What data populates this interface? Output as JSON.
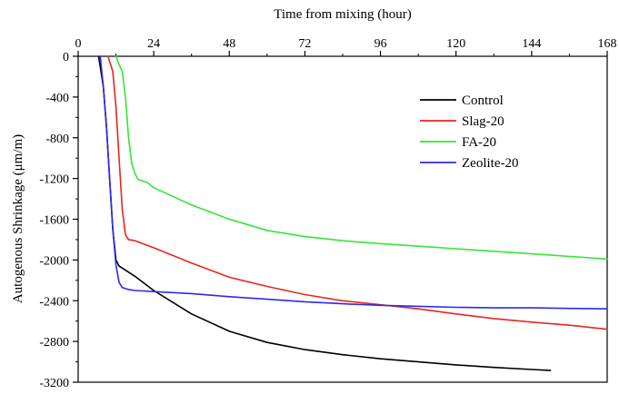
{
  "chart_data": {
    "type": "line",
    "xlabel": "Time from mixing (hour)",
    "ylabel": "Autogenous Shrinkage (μm/m)",
    "xlim": [
      0,
      168
    ],
    "ylim": [
      -3200,
      0
    ],
    "xticks": [
      0,
      24,
      48,
      72,
      96,
      120,
      144,
      168
    ],
    "yticks": [
      0,
      -400,
      -800,
      -1200,
      -1600,
      -2000,
      -2400,
      -2800,
      -3200
    ],
    "xtick_labels": [
      "0",
      "24",
      "48",
      "72",
      "96",
      "120",
      "144",
      "168"
    ],
    "ytick_labels": [
      "0",
      "-400",
      "-800",
      "-1200",
      "-1600",
      "-2000",
      "-2400",
      "-2800",
      "-3200"
    ],
    "x_axis_position": "top",
    "grid": false,
    "legend_position": "upper-right",
    "series": [
      {
        "name": "Control",
        "color": "#000000",
        "x": [
          6.5,
          8,
          9,
          10,
          11,
          12,
          13,
          15,
          18,
          24,
          36,
          48,
          60,
          72,
          84,
          96,
          108,
          120,
          132,
          144,
          150
        ],
        "y": [
          0,
          -300,
          -700,
          -1200,
          -1700,
          -2000,
          -2060,
          -2100,
          -2160,
          -2300,
          -2530,
          -2700,
          -2810,
          -2880,
          -2930,
          -2970,
          -3000,
          -3030,
          -3055,
          -3075,
          -3085
        ]
      },
      {
        "name": "Slag-20",
        "color": "#e8251f",
        "x": [
          9.5,
          11,
          12,
          13,
          14,
          15,
          16,
          18,
          24,
          36,
          48,
          60,
          72,
          84,
          96,
          108,
          120,
          132,
          144,
          156,
          162,
          168
        ],
        "y": [
          0,
          -150,
          -500,
          -1000,
          -1500,
          -1750,
          -1800,
          -1810,
          -1880,
          -2030,
          -2170,
          -2260,
          -2340,
          -2400,
          -2440,
          -2480,
          -2530,
          -2575,
          -2610,
          -2640,
          -2660,
          -2680
        ]
      },
      {
        "name": "FA-20",
        "color": "#35e635",
        "x": [
          12,
          13,
          14,
          15,
          16,
          17,
          18,
          19,
          20,
          22,
          24,
          36,
          48,
          60,
          72,
          84,
          96,
          108,
          120,
          132,
          144,
          156,
          168
        ],
        "y": [
          0,
          -80,
          -150,
          -400,
          -800,
          -1050,
          -1150,
          -1210,
          -1220,
          -1240,
          -1290,
          -1460,
          -1600,
          -1710,
          -1770,
          -1810,
          -1840,
          -1865,
          -1890,
          -1915,
          -1940,
          -1965,
          -1990
        ]
      },
      {
        "name": "Zeolite-20",
        "color": "#2b2be8",
        "x": [
          7,
          8,
          9,
          10,
          11,
          12,
          13,
          14,
          16,
          18,
          24,
          36,
          48,
          60,
          72,
          84,
          96,
          108,
          120,
          132,
          144,
          156,
          168
        ],
        "y": [
          0,
          -300,
          -700,
          -1200,
          -1700,
          -2050,
          -2220,
          -2270,
          -2290,
          -2300,
          -2310,
          -2330,
          -2360,
          -2385,
          -2410,
          -2430,
          -2445,
          -2455,
          -2465,
          -2470,
          -2470,
          -2475,
          -2480
        ]
      }
    ]
  }
}
